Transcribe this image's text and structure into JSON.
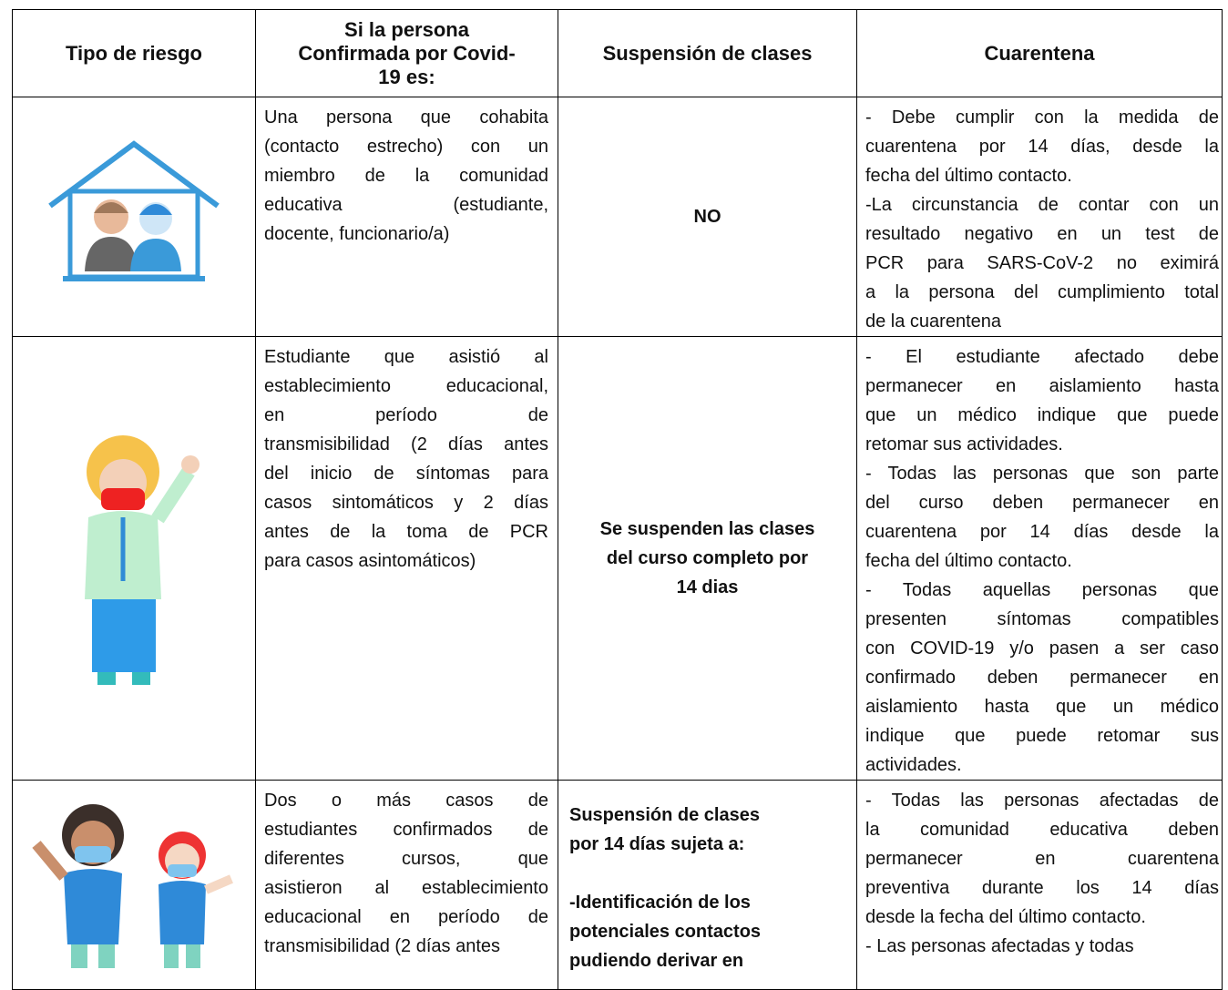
{
  "table": {
    "header": [
      [
        "Tipo de riesgo"
      ],
      [
        "Si la persona",
        "Confirmada por Covid-",
        "19 es:"
      ],
      [
        "Suspensión de clases"
      ],
      [
        "Cuarentena"
      ]
    ],
    "rows": [
      {
        "description": [
          [
            "Una persona que cohabita",
            "(contacto estrecho) con un",
            "miembro de la comunidad",
            "educativa (estudiante,",
            "docente, funcionario/a)"
          ]
        ],
        "suspension": [
          [
            "NO"
          ]
        ],
        "quarantine": [
          [
            "- Debe cumplir con la medida de",
            "cuarentena por 14 días, desde la",
            "fecha del último contacto."
          ],
          [
            " -La circunstancia de contar con un",
            "resultado negativo en un test de",
            "PCR para SARS-CoV-2 no eximirá",
            "a la persona del cumplimiento total",
            "de la cuarentena"
          ]
        ]
      },
      {
        "description": [
          [
            "Estudiante que asistió al",
            "establecimiento educacional,",
            "en período de",
            "transmisibilidad (2 días antes",
            "del inicio de síntomas para",
            "casos sintomáticos y 2 días",
            "antes de la toma de PCR",
            "para casos asintomáticos)"
          ]
        ],
        "suspension": [
          [
            "Se suspenden las clases",
            "del curso completo por",
            "14 dias"
          ]
        ],
        "quarantine": [
          [
            "- El estudiante afectado debe",
            "permanecer en aislamiento hasta",
            "que un médico indique que puede",
            "retomar sus actividades."
          ],
          [
            "- Todas las personas que son parte",
            "del curso deben permanecer en",
            "cuarentena por 14 días desde la",
            "fecha del último contacto."
          ],
          [
            "- Todas aquellas personas que",
            "presenten síntomas compatibles",
            "con COVID-19 y/o pasen a ser caso",
            "confirmado deben permanecer en",
            "aislamiento hasta que un médico",
            "indique que puede retomar sus",
            "actividades."
          ]
        ]
      },
      {
        "description": [
          [
            "Dos o más casos de",
            "estudiantes confirmados de",
            "diferentes cursos, que",
            "asistieron al establecimiento",
            "educacional en período de",
            "transmisibilidad (2 días antes"
          ]
        ],
        "suspension": [
          [
            "Suspensión de clases",
            "por 14 días sujeta a:"
          ],
          [
            "-Identificación de los",
            "potenciales contactos",
            "pudiendo derivar en"
          ]
        ],
        "quarantine": [
          [
            "- Todas las personas afectadas de",
            "la comunidad educativa deben",
            "permanecer en cuarentena",
            "preventiva durante los 14 días",
            "desde la fecha del último contacto."
          ],
          [
            "- Las personas afectadas y todas"
          ]
        ]
      }
    ]
  }
}
